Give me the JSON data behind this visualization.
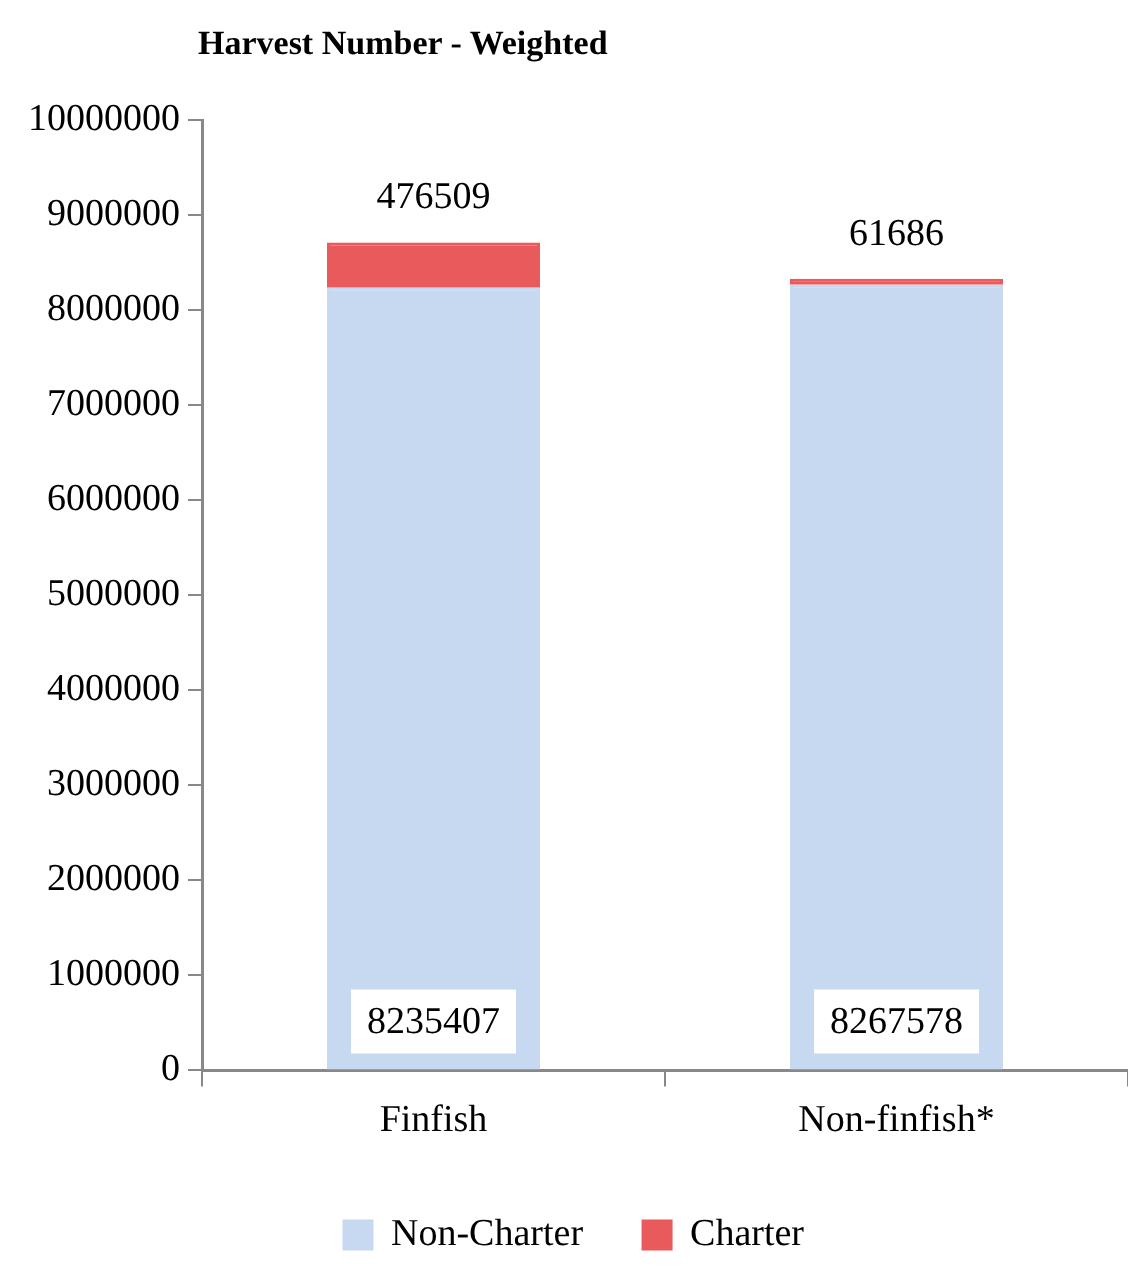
{
  "chart_data": {
    "type": "bar",
    "title": "Harvest Number - Weighted",
    "categories": [
      "Finfish",
      "Non-finfish*"
    ],
    "stacked": true,
    "series": [
      {
        "name": "Non-Charter",
        "color": "#c6d9f1",
        "values": [
          8235407,
          8267578
        ]
      },
      {
        "name": "Charter",
        "color": "#e85a5c",
        "values": [
          476509,
          61686
        ]
      }
    ],
    "ylim": [
      0,
      10000000
    ],
    "yticks": [
      0,
      1000000,
      2000000,
      3000000,
      4000000,
      5000000,
      6000000,
      7000000,
      8000000,
      9000000,
      10000000
    ],
    "data_labels": true,
    "grid": false,
    "legend": "bottom"
  }
}
